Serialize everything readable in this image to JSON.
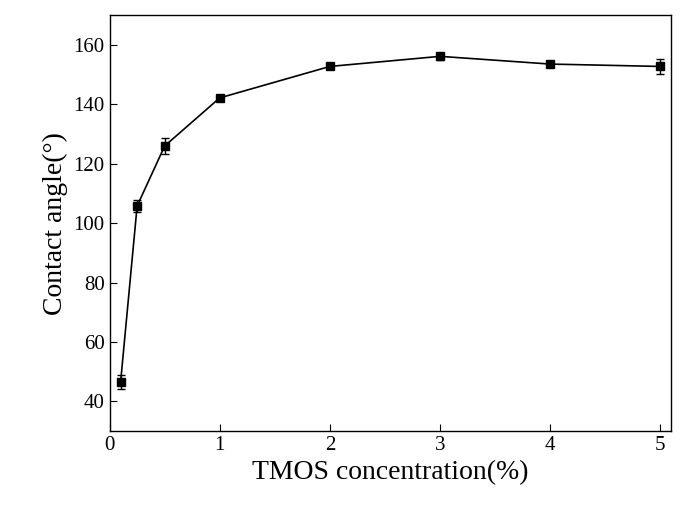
{
  "chart_data": {
    "type": "line",
    "x_label": "TMOS concentration(%)",
    "y_label": "Contact angle(°)",
    "x": [
      0.1,
      0.25,
      0.5,
      1,
      2,
      3,
      4,
      5
    ],
    "series": [
      {
        "name": "Contact angle",
        "color": "#000000",
        "marker": "s",
        "line_style": "solid",
        "values": [
          46.5,
          105.8,
          126.0,
          142.2,
          152.8,
          156.2,
          153.6,
          152.8
        ],
        "errors": [
          2.5,
          2.0,
          2.8,
          1.0,
          0.6,
          1.2,
          0.6,
          2.5
        ]
      }
    ],
    "xlim": [
      0,
      5.1
    ],
    "xticks": [
      0,
      1,
      2,
      3,
      4,
      5
    ],
    "ylim": [
      30,
      170
    ],
    "yticks": [
      40,
      60,
      80,
      100,
      120,
      140,
      160
    ],
    "grid": false
  }
}
